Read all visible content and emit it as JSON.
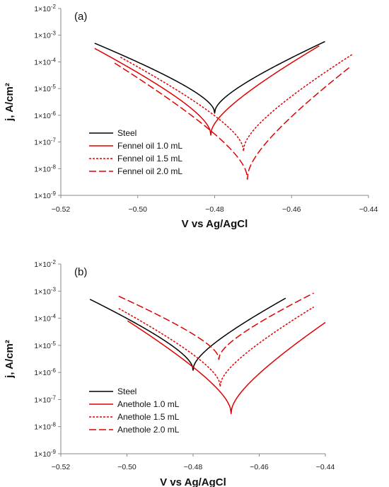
{
  "chart_data": [
    {
      "type": "line",
      "panel_label": "(a)",
      "xlabel": "V vs Ag/AgCl",
      "ylabel": "j, A/cm²",
      "xlim": [
        -0.52,
        -0.44
      ],
      "ylim_exp": [
        -9,
        -2
      ],
      "y_scale": "log",
      "xticks": [
        "−0.52",
        "−0.50",
        "−0.48",
        "−0.46",
        "−0.44"
      ],
      "yticks": [
        "1×10-9",
        "1×10-8",
        "1×10-7",
        "1×10-6",
        "1×10-5",
        "1×10-4",
        "1×10-3",
        "1×10-2"
      ],
      "grid": false,
      "legend_position": "lower-left",
      "series": [
        {
          "name": "Steel",
          "color": "#000000",
          "dash": "solid",
          "ecorr": -0.48,
          "jmin": 1.2e-06,
          "x_start": -0.5112,
          "j_start": 0.0005,
          "x_end": -0.4513,
          "j_end": 0.00058
        },
        {
          "name": "Fennel oil 1.0 mL",
          "color": "#e00000",
          "dash": "solid",
          "ecorr": -0.481,
          "jmin": 1.8e-07,
          "x_start": -0.5112,
          "j_start": 0.00032,
          "x_end": -0.4528,
          "j_end": 0.0004
        },
        {
          "name": "Fennel oil 1.5 mL",
          "color": "#e00000",
          "dash": "short",
          "ecorr": -0.4725,
          "jmin": 4.5e-08,
          "x_start": -0.5045,
          "j_start": 0.00015,
          "x_end": -0.444,
          "j_end": 0.0002
        },
        {
          "name": "Fennel oil 2.0 mL",
          "color": "#e00000",
          "dash": "long",
          "ecorr": -0.4715,
          "jmin": 4e-09,
          "x_start": -0.506,
          "j_start": 9e-05,
          "x_end": -0.4445,
          "j_end": 7e-05
        }
      ]
    },
    {
      "type": "line",
      "panel_label": "(b)",
      "xlabel": "V vs Ag/AgCl",
      "ylabel": "j, A/cm²",
      "xlim": [
        -0.52,
        -0.44
      ],
      "ylim_exp": [
        -9,
        -2
      ],
      "y_scale": "log",
      "xticks": [
        "−0.52",
        "−0.50",
        "−0.48",
        "−0.46",
        "−0.44"
      ],
      "yticks": [
        "1×10-9",
        "1×10-8",
        "1×10-7",
        "1×10-6",
        "1×10-5",
        "1×10-4",
        "1×10-3",
        "1×10-2"
      ],
      "grid": false,
      "legend_position": "lower-left",
      "series": [
        {
          "name": "Steel",
          "color": "#000000",
          "dash": "solid",
          "ecorr": -0.48,
          "jmin": 1.2e-06,
          "x_start": -0.5112,
          "j_start": 0.0005,
          "x_end": -0.452,
          "j_end": 0.00055
        },
        {
          "name": "Anethole 1.0 mL",
          "color": "#e00000",
          "dash": "solid",
          "ecorr": -0.4685,
          "jmin": 3e-08,
          "x_start": -0.4998,
          "j_start": 8e-05,
          "x_end": -0.44,
          "j_end": 7e-05
        },
        {
          "name": "Anethole 1.5 mL",
          "color": "#e00000",
          "dash": "short",
          "ecorr": -0.4718,
          "jmin": 3e-07,
          "x_start": -0.5025,
          "j_start": 0.00023,
          "x_end": -0.4435,
          "j_end": 0.00026
        },
        {
          "name": "Anethole 2.0 mL",
          "color": "#e00000",
          "dash": "long",
          "ecorr": -0.4722,
          "jmin": 3e-06,
          "x_start": -0.5025,
          "j_start": 0.00065,
          "x_end": -0.4435,
          "j_end": 0.00085
        }
      ]
    }
  ]
}
